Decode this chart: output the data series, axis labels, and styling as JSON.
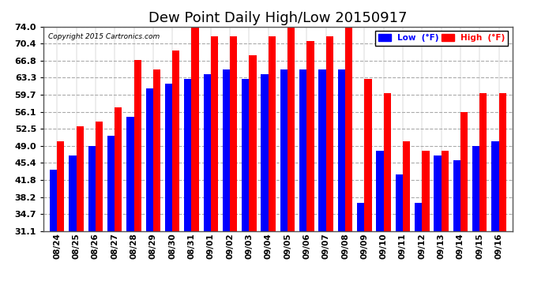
{
  "title": "Dew Point Daily High/Low 20150917",
  "copyright": "Copyright 2015 Cartronics.com",
  "dates": [
    "08/24",
    "08/25",
    "08/26",
    "08/27",
    "08/28",
    "08/29",
    "08/30",
    "08/31",
    "09/01",
    "09/02",
    "09/03",
    "09/04",
    "09/05",
    "09/06",
    "09/07",
    "09/08",
    "09/09",
    "09/10",
    "09/11",
    "09/12",
    "09/13",
    "09/14",
    "09/15",
    "09/16"
  ],
  "low_values": [
    44,
    47,
    49,
    51,
    55,
    61,
    62,
    63,
    64,
    65,
    63,
    64,
    65,
    65,
    65,
    65,
    37,
    48,
    43,
    37,
    47,
    46,
    49,
    50
  ],
  "high_values": [
    50,
    53,
    54,
    57,
    67,
    65,
    69,
    75,
    72,
    72,
    68,
    72,
    75,
    71,
    72,
    75,
    63,
    60,
    50,
    48,
    48,
    56,
    60,
    60
  ],
  "low_color": "#0000FF",
  "high_color": "#FF0000",
  "background_color": "#FFFFFF",
  "grid_color": "#AAAAAA",
  "yticks": [
    31.1,
    34.7,
    38.2,
    41.8,
    45.4,
    49.0,
    52.5,
    56.1,
    59.7,
    63.3,
    66.8,
    70.4,
    74.0
  ],
  "ylim": [
    31.1,
    74.0
  ],
  "ybase": 31.1,
  "title_fontsize": 13,
  "legend_low_label": "Low  (°F)",
  "legend_high_label": "High  (°F)"
}
